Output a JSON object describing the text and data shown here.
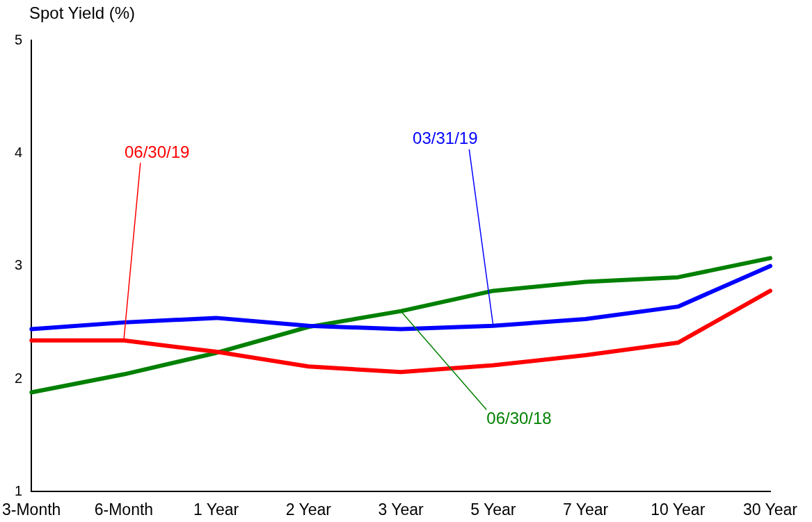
{
  "chart_data": {
    "type": "line",
    "ylabel": "Spot Yield (%)",
    "categories": [
      "3-Month",
      "6-Month",
      "1 Year",
      "2 Year",
      "3 Year",
      "5 Year",
      "7 Year",
      "10 Year",
      "30 Year"
    ],
    "series": [
      {
        "name": "06/30/19",
        "color": "#ff0000",
        "values": [
          2.34,
          2.34,
          2.24,
          2.11,
          2.06,
          2.12,
          2.21,
          2.32,
          2.78
        ]
      },
      {
        "name": "03/31/19",
        "color": "#0000ff",
        "values": [
          2.44,
          2.5,
          2.54,
          2.47,
          2.44,
          2.47,
          2.53,
          2.64,
          3.0
        ]
      },
      {
        "name": "06/30/18",
        "color": "#008000",
        "values": [
          1.88,
          2.04,
          2.23,
          2.46,
          2.6,
          2.78,
          2.86,
          2.9,
          3.07
        ]
      }
    ],
    "ylim": [
      1,
      5
    ],
    "yticks": [
      1,
      2,
      3,
      4,
      5
    ],
    "grid": false,
    "legend": false,
    "marker": "none",
    "line_style": "solid"
  }
}
